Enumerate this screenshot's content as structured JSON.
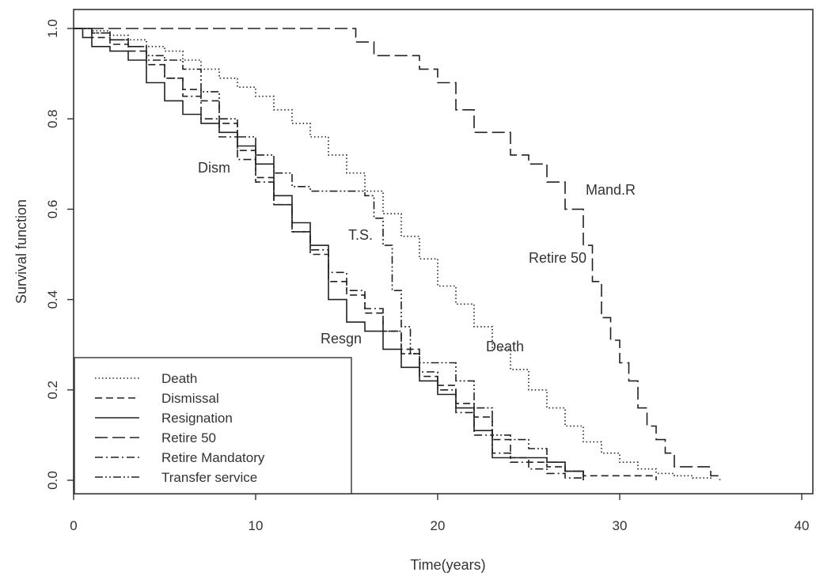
{
  "chart_data": {
    "type": "line",
    "subtype": "step survival curves",
    "title": "",
    "xlabel": "Time(years)",
    "ylabel": "Survival function",
    "xlim": [
      0,
      40
    ],
    "ylim": [
      0.0,
      1.0
    ],
    "xticks": [
      "0",
      "10",
      "20",
      "30",
      "40"
    ],
    "yticks": [
      "0.0",
      "0.2",
      "0.4",
      "0.6",
      "0.8",
      "1.0"
    ],
    "grid": false,
    "legend_position": "bottom-left",
    "curve_labels": {
      "death": "Death",
      "dismissal": "Dism",
      "resignation": "Resgn",
      "retire50": "Retire 50",
      "mandatory": "Mand.R",
      "transfer": "T.S."
    },
    "series": [
      {
        "key": "death",
        "name": "Death",
        "linestyle": "dotted",
        "points": [
          [
            0,
            1.0
          ],
          [
            1,
            0.995
          ],
          [
            2,
            0.985
          ],
          [
            3,
            0.975
          ],
          [
            4,
            0.96
          ],
          [
            5,
            0.95
          ],
          [
            6,
            0.93
          ],
          [
            7,
            0.91
          ],
          [
            8,
            0.89
          ],
          [
            9,
            0.87
          ],
          [
            10,
            0.85
          ],
          [
            11,
            0.82
          ],
          [
            12,
            0.79
          ],
          [
            13,
            0.76
          ],
          [
            14,
            0.72
          ],
          [
            15,
            0.68
          ],
          [
            16,
            0.64
          ],
          [
            17,
            0.59
          ],
          [
            18,
            0.54
          ],
          [
            19,
            0.49
          ],
          [
            20,
            0.43
          ],
          [
            21,
            0.39
          ],
          [
            22,
            0.34
          ],
          [
            23,
            0.29
          ],
          [
            24,
            0.245
          ],
          [
            25,
            0.2
          ],
          [
            26,
            0.16
          ],
          [
            27,
            0.12
          ],
          [
            28,
            0.085
          ],
          [
            29,
            0.06
          ],
          [
            30,
            0.04
          ],
          [
            31,
            0.025
          ],
          [
            32,
            0.015
          ],
          [
            33,
            0.01
          ],
          [
            34,
            0.005
          ],
          [
            35,
            0.002
          ]
        ]
      },
      {
        "key": "dismissal",
        "name": "Dismissal",
        "linestyle": "dashed",
        "points": [
          [
            0,
            1.0
          ],
          [
            1,
            0.98
          ],
          [
            2,
            0.965
          ],
          [
            3,
            0.95
          ],
          [
            4,
            0.92
          ],
          [
            5,
            0.89
          ],
          [
            6,
            0.865
          ],
          [
            7,
            0.84
          ],
          [
            8,
            0.79
          ],
          [
            9,
            0.73
          ],
          [
            10,
            0.67
          ],
          [
            11,
            0.61
          ],
          [
            12,
            0.55
          ],
          [
            13,
            0.5
          ],
          [
            14,
            0.44
          ],
          [
            15,
            0.41
          ],
          [
            16,
            0.37
          ],
          [
            17,
            0.33
          ],
          [
            18,
            0.29
          ],
          [
            19,
            0.23
          ],
          [
            20,
            0.21
          ],
          [
            21,
            0.17
          ],
          [
            22,
            0.14
          ],
          [
            23,
            0.09
          ],
          [
            24,
            0.05
          ],
          [
            25,
            0.04
          ],
          [
            26,
            0.03
          ],
          [
            27,
            0.02
          ],
          [
            28,
            0.01
          ],
          [
            30,
            0.01
          ],
          [
            32,
            0.0
          ]
        ]
      },
      {
        "key": "resignation",
        "name": "Resignation",
        "linestyle": "solid",
        "points": [
          [
            0,
            1.0
          ],
          [
            0.5,
            0.98
          ],
          [
            1,
            0.96
          ],
          [
            2,
            0.95
          ],
          [
            3,
            0.93
          ],
          [
            4,
            0.88
          ],
          [
            5,
            0.84
          ],
          [
            6,
            0.81
          ],
          [
            7,
            0.79
          ],
          [
            8,
            0.77
          ],
          [
            9,
            0.74
          ],
          [
            10,
            0.7
          ],
          [
            11,
            0.63
          ],
          [
            12,
            0.57
          ],
          [
            13,
            0.52
          ],
          [
            14,
            0.4
          ],
          [
            15,
            0.35
          ],
          [
            16,
            0.33
          ],
          [
            17,
            0.29
          ],
          [
            18,
            0.25
          ],
          [
            19,
            0.22
          ],
          [
            20,
            0.19
          ],
          [
            21,
            0.16
          ],
          [
            22,
            0.11
          ],
          [
            23,
            0.05
          ],
          [
            24,
            0.05
          ],
          [
            25,
            0.05
          ],
          [
            26,
            0.04
          ],
          [
            27,
            0.02
          ],
          [
            28,
            0.0
          ]
        ]
      },
      {
        "key": "retire50",
        "name": "Retire 50",
        "linestyle": "long-dashed",
        "points": [
          [
            0,
            1.0
          ],
          [
            14,
            1.0
          ],
          [
            15.5,
            0.97
          ],
          [
            16.5,
            0.94
          ],
          [
            19,
            0.91
          ],
          [
            20,
            0.88
          ],
          [
            21,
            0.82
          ],
          [
            22,
            0.77
          ],
          [
            24,
            0.72
          ],
          [
            25,
            0.7
          ],
          [
            26,
            0.66
          ],
          [
            27,
            0.6
          ],
          [
            28,
            0.52
          ],
          [
            28.5,
            0.44
          ],
          [
            29,
            0.36
          ],
          [
            29.5,
            0.31
          ],
          [
            30,
            0.26
          ],
          [
            30.5,
            0.22
          ],
          [
            31,
            0.16
          ],
          [
            31.5,
            0.12
          ],
          [
            32,
            0.09
          ],
          [
            32.5,
            0.06
          ],
          [
            33,
            0.03
          ],
          [
            34,
            0.03
          ],
          [
            35,
            0.01
          ],
          [
            35.5,
            0.0
          ]
        ]
      },
      {
        "key": "mandatory",
        "name": "Retire Mandatory",
        "linestyle": "dash-dot",
        "points": [
          [
            0,
            1.0
          ],
          [
            1,
            0.99
          ],
          [
            2,
            0.975
          ],
          [
            3,
            0.96
          ],
          [
            4,
            0.93
          ],
          [
            5,
            0.89
          ],
          [
            6,
            0.85
          ],
          [
            7,
            0.8
          ],
          [
            8,
            0.76
          ],
          [
            9,
            0.71
          ],
          [
            10,
            0.66
          ],
          [
            11,
            0.61
          ],
          [
            12,
            0.55
          ],
          [
            13,
            0.51
          ],
          [
            14,
            0.46
          ],
          [
            15,
            0.42
          ],
          [
            16,
            0.38
          ],
          [
            17,
            0.33
          ],
          [
            18,
            0.28
          ],
          [
            19,
            0.24
          ],
          [
            20,
            0.2
          ],
          [
            21,
            0.15
          ],
          [
            22,
            0.1
          ],
          [
            23,
            0.06
          ],
          [
            24,
            0.04
          ],
          [
            25,
            0.025
          ],
          [
            26,
            0.015
          ],
          [
            27,
            0.005
          ],
          [
            28,
            0.0
          ]
        ]
      },
      {
        "key": "transfer",
        "name": "Transfer service",
        "linestyle": "dash-dot-dot",
        "points": [
          [
            0,
            1.0
          ],
          [
            1,
            0.99
          ],
          [
            2,
            0.975
          ],
          [
            3,
            0.96
          ],
          [
            4,
            0.94
          ],
          [
            5,
            0.93
          ],
          [
            6,
            0.91
          ],
          [
            7,
            0.86
          ],
          [
            8,
            0.8
          ],
          [
            9,
            0.76
          ],
          [
            10,
            0.72
          ],
          [
            11,
            0.68
          ],
          [
            12,
            0.65
          ],
          [
            13,
            0.64
          ],
          [
            14,
            0.64
          ],
          [
            15,
            0.64
          ],
          [
            16,
            0.63
          ],
          [
            16.5,
            0.58
          ],
          [
            17,
            0.52
          ],
          [
            17.5,
            0.42
          ],
          [
            18,
            0.34
          ],
          [
            18.5,
            0.28
          ],
          [
            19,
            0.26
          ],
          [
            20,
            0.26
          ],
          [
            21,
            0.22
          ],
          [
            22,
            0.16
          ],
          [
            23,
            0.1
          ],
          [
            24,
            0.09
          ],
          [
            25,
            0.07
          ],
          [
            26,
            0.04
          ],
          [
            27,
            0.02
          ],
          [
            28,
            0.0
          ]
        ]
      }
    ]
  }
}
